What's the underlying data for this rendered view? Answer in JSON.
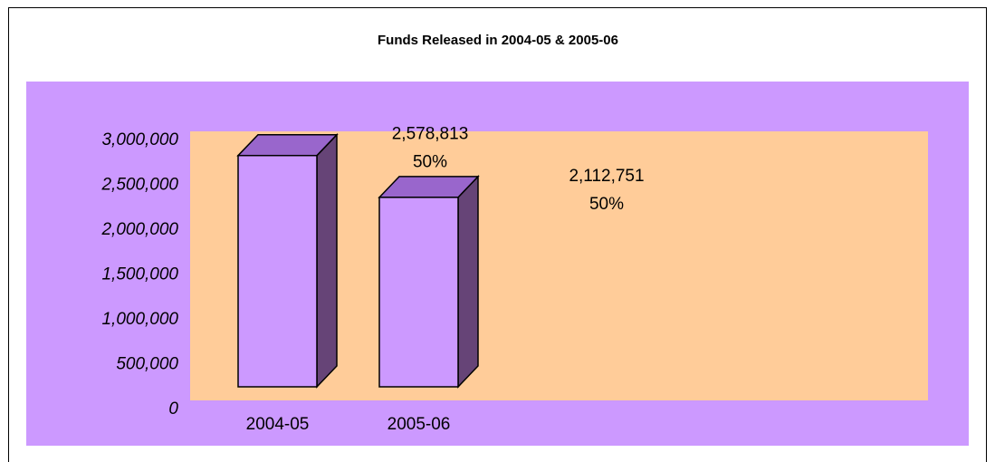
{
  "chart_data": {
    "type": "bar3d",
    "title": "Funds Released in 2004-05 & 2005-06",
    "categories": [
      "2004-05",
      "2005-06"
    ],
    "values": [
      2578813,
      2112751
    ],
    "value_labels": [
      "2,578,813",
      "2,112,751"
    ],
    "percent_labels": [
      "50%",
      "50%"
    ],
    "color": "#cc99ff",
    "ylim": [
      0,
      3000000
    ],
    "yticks": [
      0,
      {
        "value": 500000,
        "label": "500,000"
      },
      {
        "value": 1000000,
        "label": "1,000,000"
      },
      {
        "value": 1500000,
        "label": "1,500,000"
      },
      {
        "value": 2000000,
        "label": "2,000,000"
      },
      {
        "value": 2500000,
        "label": "2,500,000"
      },
      {
        "value": 3000000,
        "label": "3,000,000"
      }
    ],
    "chart_background": "#cc99ff",
    "plot_background": "#ffcc99",
    "grid": false
  }
}
